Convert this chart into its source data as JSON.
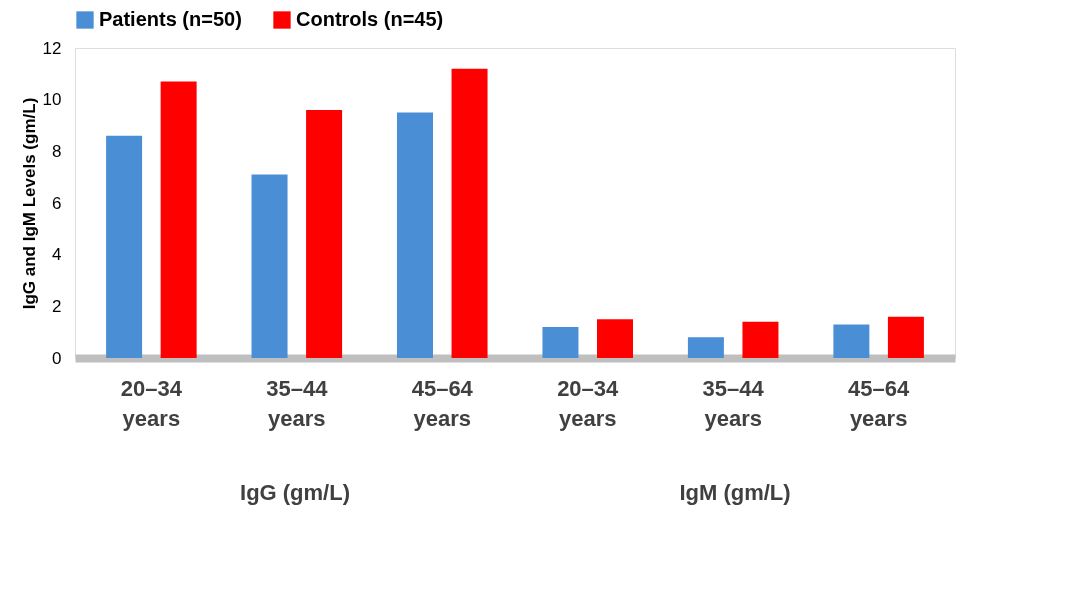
{
  "chart_data": {
    "type": "bar",
    "ylabel": "IgG and IgM Levels (gm/L)",
    "categories": [
      "20–34 years",
      "35–44 years",
      "45–64 years",
      "20–34 years",
      "35–44 years",
      "45–64 years"
    ],
    "series": [
      {
        "name": "Patients (n=50)",
        "color": "#4a8fd6",
        "values": [
          8.6,
          7.1,
          9.5,
          1.2,
          0.8,
          1.3
        ]
      },
      {
        "name": "Controls (n=45)",
        "color": "#ff0000",
        "values": [
          10.7,
          9.6,
          11.2,
          1.5,
          1.4,
          1.6
        ]
      }
    ],
    "ylim": [
      0,
      12
    ],
    "yticks": [
      0,
      2,
      4,
      6,
      8,
      10,
      12
    ],
    "grid": false,
    "legend": "top",
    "annotations": [
      "IgG (gm/L)",
      "IgM (gm/L)"
    ]
  }
}
